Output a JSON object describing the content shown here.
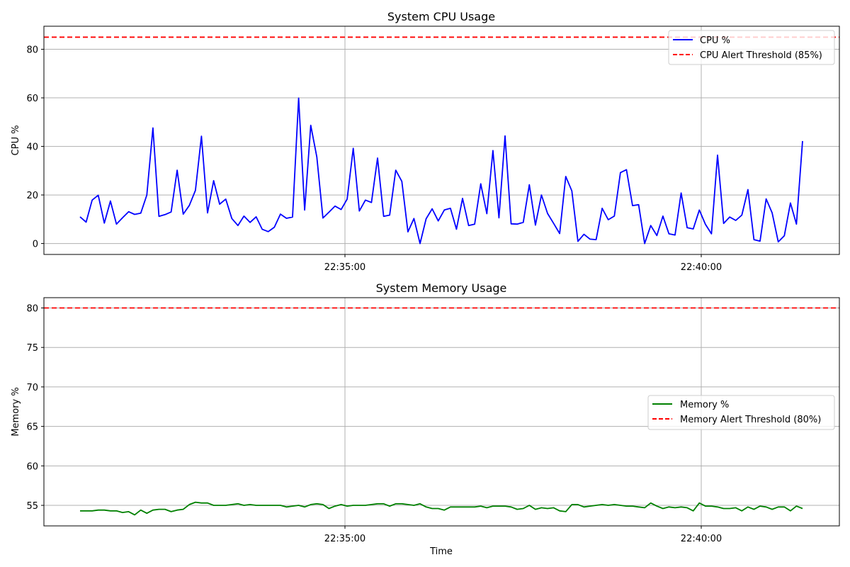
{
  "chart_data": [
    {
      "type": "line",
      "title": "System CPU Usage",
      "xlabel": "",
      "ylabel": "CPU %",
      "ylim": [
        -4.5,
        89.5
      ],
      "yticks": [
        0,
        20,
        40,
        60,
        80
      ],
      "xticks": [
        "22:35:00",
        "22:40:00"
      ],
      "grid": true,
      "legend_position": "top-right",
      "series": [
        {
          "name": "CPU %",
          "color": "#0000ff",
          "style": "solid",
          "values": [
            11.0,
            8.8,
            17.9,
            19.9,
            8.4,
            17.5,
            8.0,
            10.6,
            13.1,
            12.0,
            12.5,
            20.0,
            47.6,
            11.2,
            11.9,
            13.0,
            30.2,
            12.1,
            15.7,
            21.9,
            44.2,
            12.6,
            25.9,
            16.2,
            18.3,
            10.3,
            7.4,
            11.3,
            8.7,
            11.0,
            5.9,
            4.9,
            6.7,
            12.1,
            10.4,
            10.9,
            59.9,
            13.8,
            48.7,
            35.6,
            10.5,
            12.9,
            15.4,
            14.0,
            18.3,
            39.2,
            13.4,
            17.9,
            16.9,
            35.2,
            11.2,
            11.7,
            30.2,
            25.6,
            4.8,
            10.3,
            0.0,
            10.2,
            14.3,
            9.3,
            13.8,
            14.5,
            5.9,
            18.6,
            7.4,
            8.0,
            24.6,
            12.3,
            38.3,
            10.6,
            44.3,
            8.1,
            8.0,
            8.7,
            24.2,
            7.6,
            20.0,
            12.4,
            8.3,
            4.1,
            27.6,
            21.7,
            0.9,
            3.8,
            1.8,
            1.6,
            14.5,
            9.8,
            11.3,
            29.2,
            30.4,
            15.6,
            16.0,
            0.0,
            7.4,
            3.3,
            11.3,
            4.0,
            3.5,
            20.8,
            6.5,
            6.0,
            13.8,
            7.9,
            4.0,
            36.4,
            8.3,
            10.9,
            9.5,
            11.7,
            22.2,
            1.6,
            1.0,
            18.4,
            12.6,
            0.7,
            3.2,
            16.7,
            8.0,
            42.2
          ]
        },
        {
          "name": "CPU Alert Threshold (85%)",
          "color": "#ff0000",
          "style": "dashed",
          "constant": 85
        }
      ]
    },
    {
      "type": "line",
      "title": "System Memory Usage",
      "xlabel": "Time",
      "ylabel": "Memory %",
      "ylim": [
        52.4,
        81.3
      ],
      "yticks": [
        55,
        60,
        65,
        70,
        75,
        80
      ],
      "xticks": [
        "22:35:00",
        "22:40:00"
      ],
      "grid": true,
      "legend_position": "center-right",
      "series": [
        {
          "name": "Memory %",
          "color": "#008000",
          "style": "solid",
          "values": [
            54.3,
            54.3,
            54.3,
            54.4,
            54.4,
            54.3,
            54.3,
            54.1,
            54.2,
            53.8,
            54.4,
            54.0,
            54.4,
            54.5,
            54.5,
            54.2,
            54.4,
            54.5,
            55.1,
            55.4,
            55.3,
            55.3,
            55.0,
            55.0,
            55.0,
            55.1,
            55.2,
            55.0,
            55.1,
            55.0,
            55.0,
            55.0,
            55.0,
            55.0,
            54.8,
            54.9,
            55.0,
            54.8,
            55.1,
            55.2,
            55.1,
            54.6,
            54.9,
            55.1,
            54.9,
            55.0,
            55.0,
            55.0,
            55.1,
            55.2,
            55.2,
            54.9,
            55.2,
            55.2,
            55.1,
            55.0,
            55.2,
            54.8,
            54.6,
            54.6,
            54.4,
            54.8,
            54.8,
            54.8,
            54.8,
            54.8,
            54.9,
            54.7,
            54.9,
            54.9,
            54.9,
            54.8,
            54.5,
            54.6,
            55.0,
            54.5,
            54.7,
            54.6,
            54.7,
            54.3,
            54.2,
            55.1,
            55.1,
            54.8,
            54.9,
            55.0,
            55.1,
            55.0,
            55.1,
            55.0,
            54.9,
            54.9,
            54.8,
            54.7,
            55.3,
            54.9,
            54.6,
            54.8,
            54.7,
            54.8,
            54.7,
            54.3,
            55.3,
            54.9,
            54.9,
            54.8,
            54.6,
            54.6,
            54.7,
            54.3,
            54.8,
            54.5,
            54.9,
            54.8,
            54.5,
            54.8,
            54.8,
            54.3,
            54.9,
            54.6
          ]
        },
        {
          "name": "Memory Alert Threshold (80%)",
          "color": "#ff0000",
          "style": "dashed",
          "constant": 80
        }
      ]
    }
  ]
}
